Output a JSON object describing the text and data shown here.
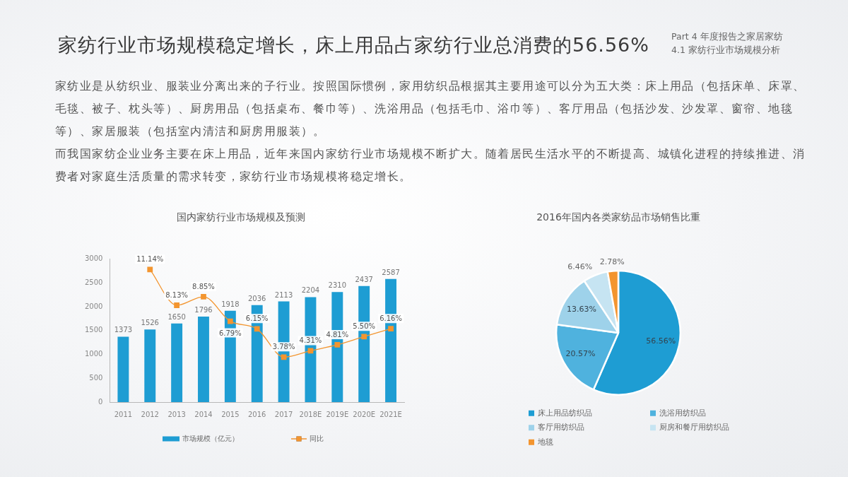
{
  "chart_data": [
    {
      "type": "other",
      "title": "家纺行业市场规模稳定增长，床上用品占家纺行业总消费的56.56%",
      "subtitle": "Part 4 年度报告之家居家纺",
      "annotations": [
        "4.1 家纺行业市场规模分析",
        "家纺业是从纺织业、服装业分离出来的子行业。按照国际惯例，家用纺织品根据其主要用途可以分为五大类：床上用品（包括床单、床罩、毛毯、被子、枕头等）、厨房用品（包括桌布、餐巾等）、洗浴用品（包括毛巾、浴巾等）、客厅用品（包括沙发、沙发罩、窗帘、地毯等）、家居服装（包括室内清洁和厨房用服装）。",
        "而我国家纺企业业务主要在床上用品，近年来国内家纺行业市场规模不断扩大。随着居民生活水平的不断提高、城镇化进程的持续推进、消费者对家庭生活质量的需求转变，家纺行业市场规模将稳定增长。"
      ]
    },
    {
      "type": "bar",
      "title": "国内家纺行业市场规模及预测",
      "categories": [
        "2011",
        "2012",
        "2013",
        "2014",
        "2015",
        "2016",
        "2017",
        "2018E",
        "2019E",
        "2020E",
        "2021E"
      ],
      "series": [
        {
          "name": "市场规模（亿元）",
          "color": "#1e9dd3",
          "values": [
            1373,
            1526,
            1650,
            1796,
            1918,
            2036,
            2113,
            2204,
            2310,
            2437,
            2587
          ],
          "value_labels": [
            "1373",
            "1526",
            "1650",
            "1796",
            "1918",
            "2036",
            "2113",
            "2204",
            "2310",
            "2437",
            "2587"
          ]
        },
        {
          "name": "同比",
          "type": "line",
          "axis": "y2",
          "color": "#f3952f",
          "values": [
            null,
            11.14,
            8.13,
            8.85,
            6.79,
            6.15,
            3.78,
            4.31,
            4.81,
            5.5,
            6.16
          ],
          "value_labels": [
            null,
            "11.14%",
            "8.13%",
            "8.85%",
            "6.79%",
            "6.15%",
            "3.78%",
            "4.31%",
            "4.81%",
            "5.50%",
            "6.16%"
          ]
        }
      ],
      "ylim": [
        0,
        3000
      ],
      "yticks": [
        0,
        500,
        1000,
        1500,
        2000,
        2500,
        3000
      ],
      "legend": "bottom",
      "marker": "square"
    },
    {
      "type": "pie",
      "title": "2016年国内各类家纺品市场销售比重",
      "categories": [
        "床上用品纺织品",
        "洗浴用纺织品",
        "客厅用纺织品",
        "厨房和餐厅用纺织品",
        "地毯"
      ],
      "values": [
        56.56,
        20.57,
        13.63,
        6.46,
        2.78
      ],
      "colors": [
        "#1e9dd3",
        "#4fb2de",
        "#9ed2ea",
        "#c6e4f2",
        "#f3952f"
      ],
      "value_labels": [
        "56.56%",
        "20.57%",
        "13.63%",
        "6.46%",
        "2.78%"
      ],
      "legend": "bottom"
    }
  ]
}
